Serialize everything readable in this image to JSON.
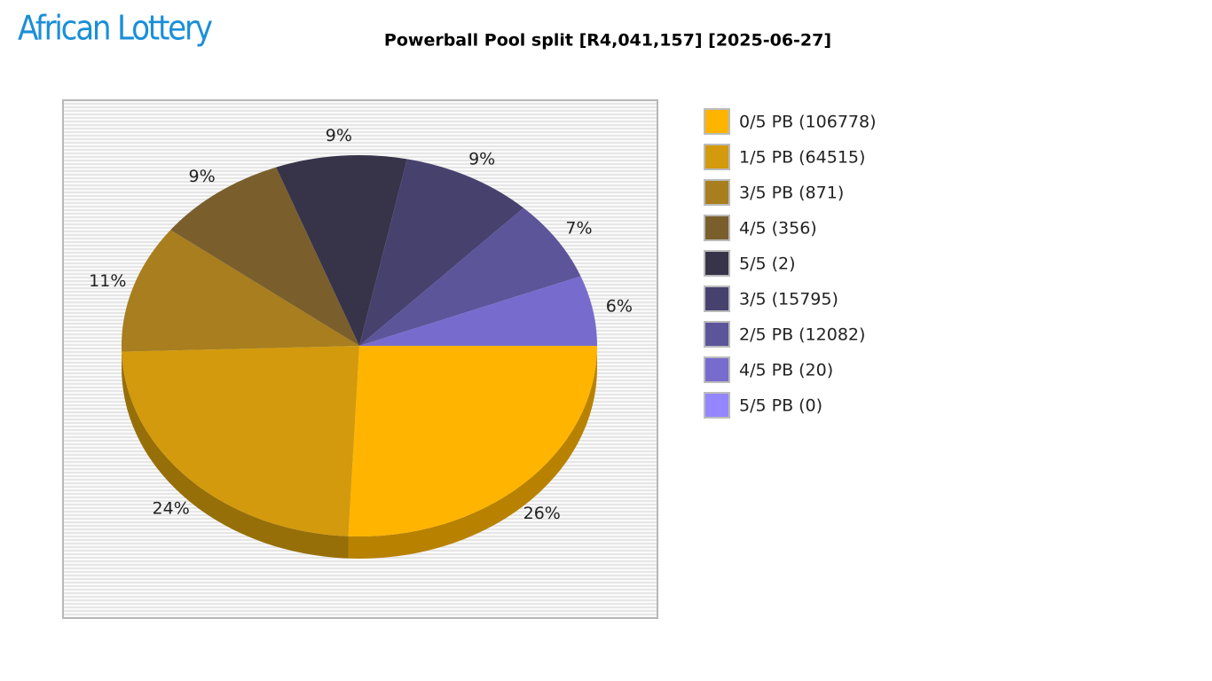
{
  "logo": "African Lottery",
  "chart_data": {
    "type": "pie",
    "title": "Powerball Pool split [R4,041,157] [2025-06-27]",
    "categories": [
      "0/5 PB (106778)",
      "1/5 PB (64515)",
      "3/5 PB (871)",
      "4/5 (356)",
      "5/5 (2)",
      "3/5 (15795)",
      "2/5 PB (12082)",
      "4/5 PB (20)",
      "5/5 PB (0)"
    ],
    "values": [
      26,
      24,
      11,
      9,
      9,
      9,
      7,
      6,
      0
    ],
    "value_labels": [
      "26%",
      "24%",
      "11%",
      "9%",
      "9%",
      "9%",
      "7%",
      "6%",
      null
    ],
    "colors": [
      "#ffb400",
      "#d29a0c",
      "#a87e1e",
      "#7a5f2d",
      "#37344a",
      "#47416e",
      "#5c559a",
      "#776ccd",
      "#9386ff"
    ],
    "legend": "right"
  }
}
